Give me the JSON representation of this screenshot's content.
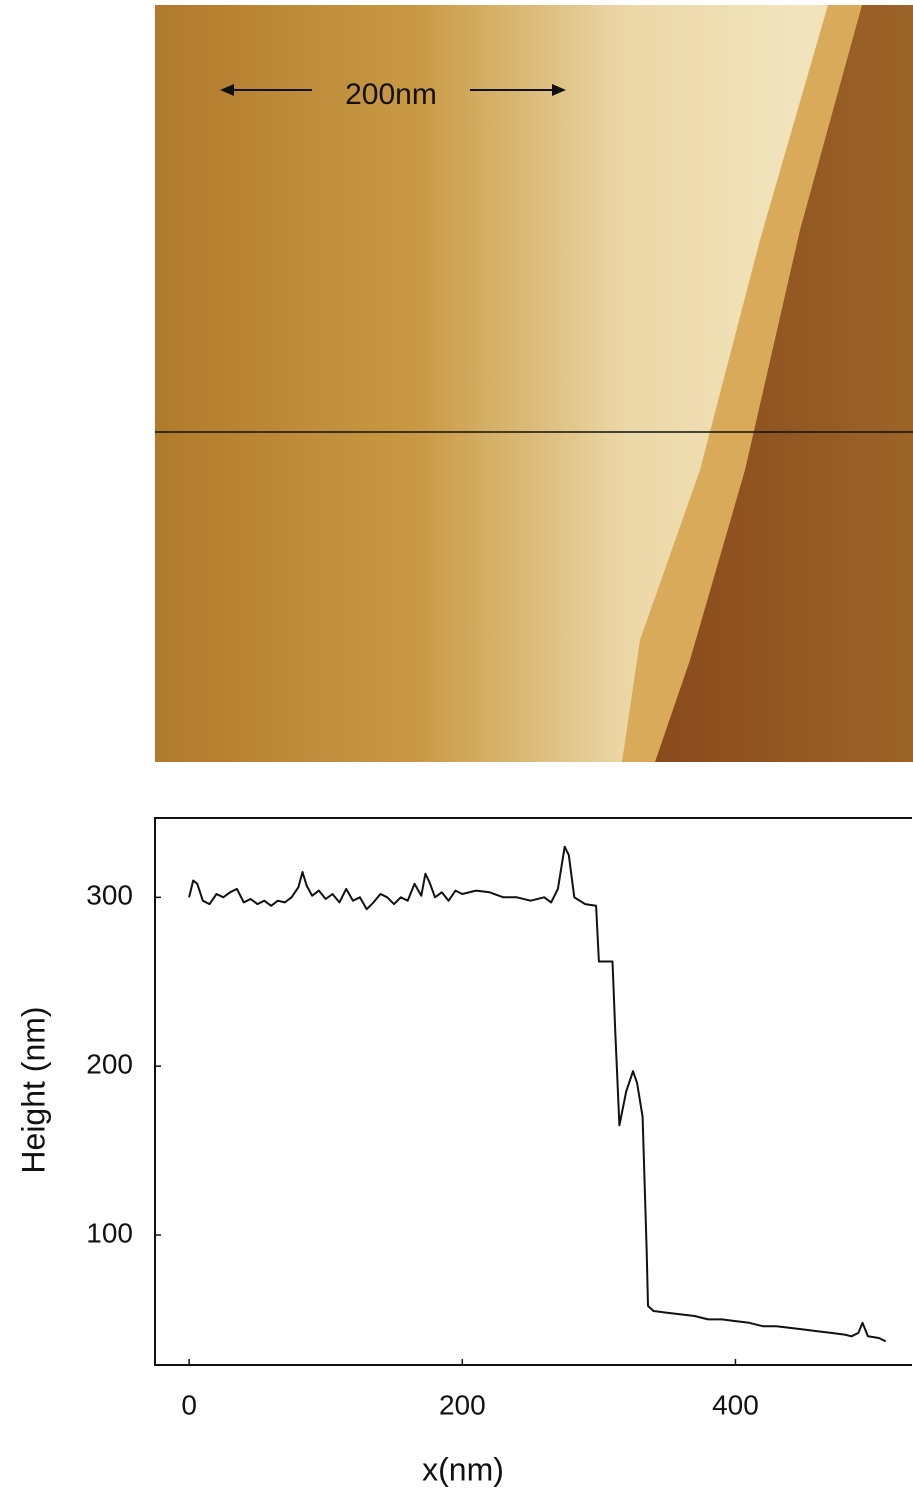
{
  "image": {
    "scale_label": "200nm"
  },
  "chart_data": {
    "type": "line",
    "xlabel": "x(nm)",
    "ylabel": "Height (nm)",
    "x": [
      0,
      3,
      6,
      10,
      15,
      20,
      25,
      30,
      35,
      40,
      45,
      50,
      55,
      60,
      65,
      70,
      75,
      80,
      83,
      86,
      90,
      95,
      100,
      105,
      110,
      115,
      120,
      125,
      130,
      135,
      140,
      145,
      150,
      155,
      160,
      165,
      170,
      173,
      176,
      180,
      185,
      190,
      195,
      200,
      210,
      220,
      230,
      240,
      250,
      260,
      265,
      270,
      275,
      278,
      282,
      290,
      298,
      300,
      305,
      310,
      312,
      315,
      320,
      325,
      328,
      332,
      335,
      336,
      340,
      350,
      360,
      370,
      380,
      390,
      400,
      410,
      420,
      430,
      440,
      450,
      460,
      470,
      480,
      485,
      490,
      493,
      497,
      505,
      510
    ],
    "series": [
      {
        "color": "#111111",
        "values": [
          300,
          310,
          308,
          298,
          296,
          302,
          300,
          303,
          305,
          297,
          299,
          296,
          298,
          295,
          298,
          297,
          300,
          306,
          315,
          307,
          301,
          304,
          299,
          302,
          297,
          305,
          298,
          300,
          293,
          297,
          302,
          300,
          296,
          300,
          298,
          308,
          301,
          314,
          309,
          300,
          303,
          298,
          304,
          302,
          304,
          303,
          300,
          300,
          298,
          300,
          297,
          305,
          330,
          325,
          300,
          296,
          295,
          262,
          262,
          262,
          220,
          165,
          185,
          197,
          190,
          170,
          90,
          58,
          55,
          54,
          53,
          52,
          50,
          50,
          49,
          48,
          46,
          46,
          45,
          44,
          43,
          42,
          41,
          40,
          42,
          48,
          40,
          39,
          37
        ]
      }
    ],
    "xlim": [
      -25,
      530
    ],
    "ylim": [
      23,
      347
    ],
    "xticks": [
      0,
      200,
      400
    ],
    "yticks": [
      100,
      200,
      300
    ]
  }
}
